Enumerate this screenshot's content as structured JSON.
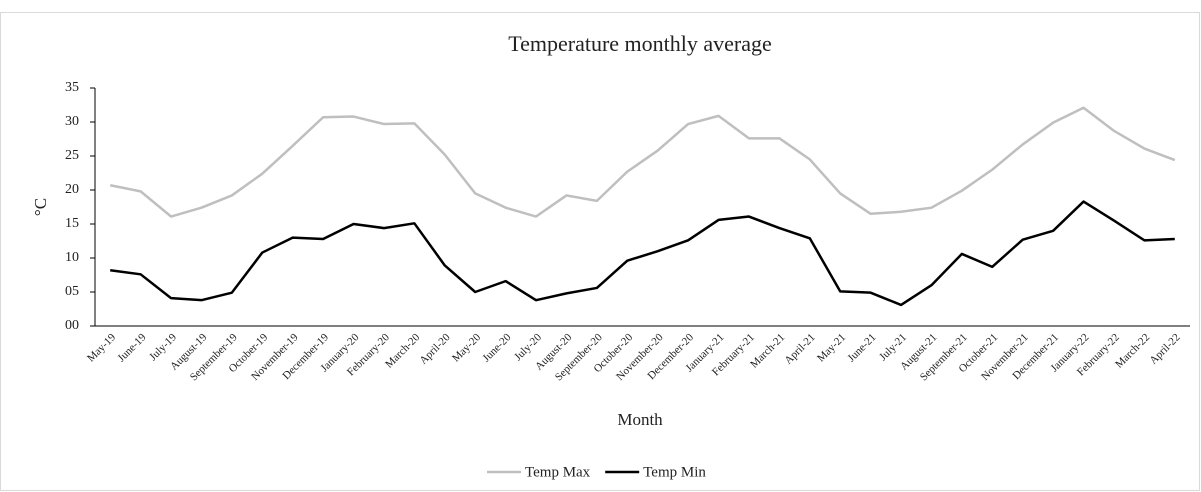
{
  "chart_data": {
    "type": "line",
    "title": "Temperature monthly average",
    "x_label": "Month",
    "y_label": "°C",
    "categories": [
      "May-19",
      "June-19",
      "July-19",
      "August-19",
      "September-19",
      "October-19",
      "November-19",
      "December-19",
      "January-20",
      "February-20",
      "March-20",
      "April-20",
      "May-20",
      "June-20",
      "July-20",
      "August-20",
      "September-20",
      "October-20",
      "November-20",
      "December-20",
      "January-21",
      "February-21",
      "March-21",
      "April-21",
      "May-21",
      "June-21",
      "July-21",
      "August-21",
      "September-21",
      "October-21",
      "November-21",
      "December-21",
      "January-22",
      "February-22",
      "March-22",
      "April-22"
    ],
    "series": [
      {
        "name": "Temp Max",
        "color": "#bfbfbf",
        "values": [
          20.7,
          19.8,
          16.1,
          17.4,
          19.2,
          22.4,
          26.5,
          30.7,
          30.8,
          29.7,
          29.8,
          25.2,
          19.5,
          17.4,
          16.1,
          19.2,
          18.4,
          22.7,
          25.8,
          29.7,
          30.9,
          27.6,
          27.6,
          24.5,
          19.5,
          16.5,
          16.8,
          17.4,
          19.9,
          23.0,
          26.7,
          29.9,
          32.1,
          28.7,
          26.1,
          24.4
        ]
      },
      {
        "name": "Temp Min",
        "color": "#000000",
        "values": [
          8.2,
          7.6,
          4.1,
          3.8,
          4.9,
          10.8,
          13.0,
          12.8,
          15.0,
          14.4,
          15.1,
          8.9,
          5.0,
          6.6,
          3.8,
          4.8,
          5.6,
          9.6,
          11.0,
          12.6,
          15.6,
          16.1,
          14.4,
          12.9,
          5.1,
          4.9,
          3.1,
          6.0,
          10.6,
          8.7,
          12.7,
          14.0,
          18.3,
          15.5,
          12.6,
          12.8
        ]
      }
    ],
    "ylim": [
      0,
      35
    ],
    "yticks": [
      {
        "value": 0,
        "label": "00"
      },
      {
        "value": 5,
        "label": "05"
      },
      10,
      15,
      20,
      25,
      30,
      35
    ],
    "legend": "bottom"
  }
}
